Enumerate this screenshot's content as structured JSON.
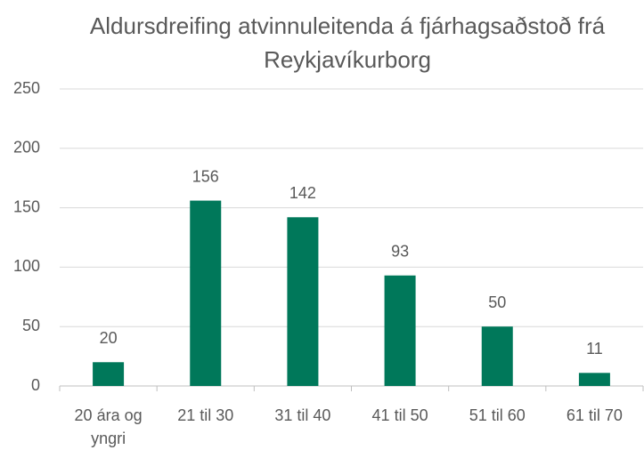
{
  "chart_data": {
    "type": "bar",
    "title": "Aldursdreifing atvinnuleitenda á fjárhagsaðstoð frá Reykjavíkurborg",
    "categories": [
      "20 ára og yngri",
      "21 til 30",
      "31 til 40",
      "41 til 50",
      "51 til 60",
      "61 til 70"
    ],
    "values": [
      20,
      156,
      142,
      93,
      50,
      11
    ],
    "color": "#00785a",
    "ylim": [
      0,
      250
    ],
    "yticks": [
      0,
      50,
      100,
      150,
      200,
      250
    ],
    "grid": true
  }
}
